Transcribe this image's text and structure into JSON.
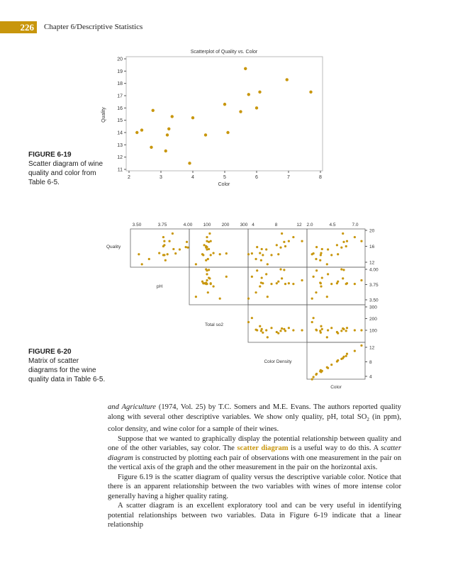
{
  "header": {
    "page_number": "226",
    "chapter": "Chapter 6/Descriptive Statistics"
  },
  "figure19": {
    "label": "FIGURE 6-19",
    "caption": "Scatter diagram of wine quality and color from Table 6-5."
  },
  "figure20": {
    "label": "FIGURE 6-20",
    "caption": "Matrix of scatter diagrams for the wine quality data in Table 6-5."
  },
  "chart_data": [
    {
      "type": "scatter",
      "title": "Scatterplot of Quality vs. Color",
      "xlabel": "Color",
      "ylabel": "Quality",
      "xlim": [
        2,
        8
      ],
      "ylim": [
        11,
        20
      ],
      "xticks": [
        "2",
        "3",
        "4",
        "5",
        "6",
        "7",
        "8"
      ],
      "yticks": [
        "11",
        "12",
        "13",
        "14",
        "15",
        "16",
        "17",
        "18",
        "19",
        "20"
      ],
      "x": [
        2.25,
        2.4,
        2.7,
        2.75,
        3.15,
        3.2,
        3.25,
        3.35,
        3.9,
        4.0,
        4.4,
        5.0,
        5.1,
        5.5,
        5.65,
        5.75,
        6.0,
        6.1,
        6.95,
        7.7
      ],
      "y": [
        14.0,
        14.2,
        12.8,
        15.8,
        12.5,
        13.8,
        14.3,
        15.3,
        11.5,
        15.2,
        13.8,
        16.3,
        14.0,
        15.7,
        19.2,
        17.1,
        16.0,
        17.3,
        18.3,
        17.3
      ],
      "point_color": "#c8960c"
    },
    {
      "type": "scatter-matrix",
      "variables": [
        "Quality",
        "pH",
        "Total so2",
        "Color Density",
        "Color"
      ],
      "top_ticks": {
        "pH": [
          "3.50",
          "3.75",
          "4.00"
        ],
        "Total so2": [
          "100",
          "200",
          "300"
        ],
        "Color Density": [
          "4",
          "8",
          "12"
        ],
        "Color": [
          "2.0",
          "4.5",
          "7.0"
        ]
      },
      "right_ticks": {
        "Quality": [
          "20",
          "16",
          "12"
        ],
        "pH": [
          "4.00",
          "3.75",
          "3.50"
        ],
        "Total so2": [
          "300",
          "200",
          "100"
        ],
        "Color Density": [
          "12",
          "8",
          "4"
        ]
      },
      "quality": [
        14.0,
        14.2,
        12.8,
        15.8,
        12.5,
        13.8,
        14.3,
        15.3,
        11.5,
        15.2,
        13.8,
        16.3,
        14.0,
        15.7,
        19.2,
        17.1,
        16.0,
        17.3,
        18.3,
        17.3
      ],
      "ph": [
        3.52,
        3.88,
        3.62,
        3.98,
        3.78,
        3.77,
        3.72,
        3.86,
        3.55,
        3.92,
        3.76,
        3.77,
        3.8,
        4.0,
        3.85,
        3.99,
        3.76,
        3.77,
        3.76,
        3.82
      ],
      "so2": [
        170,
        205,
        105,
        100,
        95,
        80,
        135,
        110,
        40,
        100,
        120,
        85,
        75,
        95,
        115,
        110,
        95,
        120,
        100,
        100
      ],
      "density": [
        3.2,
        3.8,
        4.5,
        4.7,
        5.4,
        5.7,
        5.2,
        5.5,
        6.5,
        6.3,
        7.2,
        8.1,
        8.4,
        8.8,
        9.0,
        9.4,
        9.6,
        10.2,
        11.0,
        12.5
      ],
      "color": [
        2.25,
        2.4,
        2.7,
        2.75,
        3.15,
        3.2,
        3.25,
        3.35,
        3.9,
        4.0,
        4.4,
        5.0,
        5.1,
        5.5,
        5.65,
        5.75,
        6.0,
        6.1,
        6.95,
        7.7
      ]
    }
  ],
  "body": {
    "p1_italic": "and Agriculture",
    "p1_a": " (1974, Vol. 25) by T.C. Somers and M.E. Evans. The authors reported quality along with several other descriptive variables. We show only quality, pH, total SO",
    "p1_sub": "2",
    "p1_b": " (in ppm), color density, and wine color for a sample of their wines.",
    "p2_a": "Suppose that we wanted to graphically display the potential relationship between quality and one of the other variables, say color. The ",
    "p2_term": "scatter diagram",
    "p2_b": " is a useful way to do this. A ",
    "p2_italic": "scatter diagram",
    "p2_c": " is constructed by plotting each pair of observations with one measurement in the pair on the vertical axis of the graph and the other measurement in the pair on the horizontal axis.",
    "p3": "Figure 6.19 is the scatter diagram of quality versus the descriptive variable color. Notice that there is an apparent relationship between the two variables with wines of more intense color generally having a higher quality rating.",
    "p4": "A scatter diagram is an excellent exploratory tool and can be very useful in identifying potential relationships between two variables. Data in Figure 6-19 indicate that a linear relationship"
  }
}
